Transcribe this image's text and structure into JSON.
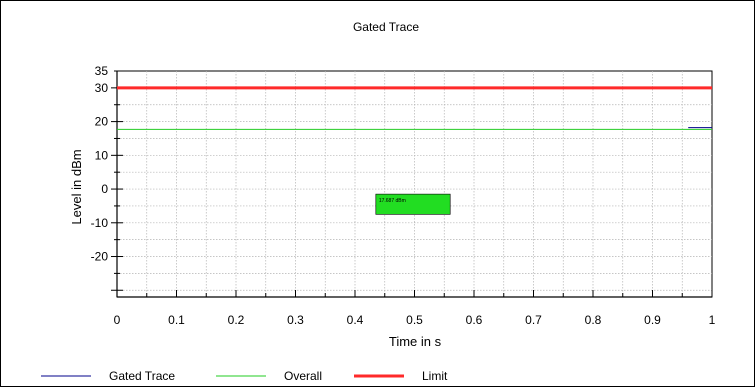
{
  "chart_data": {
    "type": "line",
    "title": "Gated Trace",
    "xlabel": "Time in s",
    "ylabel": "Level in dBm",
    "xlim": [
      0,
      1
    ],
    "ylim": [
      -32,
      35
    ],
    "x_ticks": [
      0,
      0.1,
      0.2,
      0.3,
      0.4,
      0.5,
      0.6,
      0.7,
      0.8,
      0.9,
      1
    ],
    "x_tick_labels": [
      "0",
      "0.1",
      "0.2",
      "0.3",
      "0.4",
      "0.5",
      "0.6",
      "0.7",
      "0.8",
      "0.9",
      "1"
    ],
    "y_ticks": [
      35,
      30,
      20,
      10,
      0,
      -10,
      -20
    ],
    "y_tick_labels": [
      "35",
      "30",
      "20",
      "10",
      "0",
      "-10",
      "-20"
    ],
    "grid": true,
    "legend_position": "bottom",
    "series": [
      {
        "name": "Gated Trace",
        "color": "#00008b",
        "width": 1,
        "x": [
          0.96,
          1
        ],
        "y": [
          18.2,
          18.2
        ]
      },
      {
        "name": "Overall",
        "color": "#22cc22",
        "width": 1,
        "x": [
          0,
          1
        ],
        "y": [
          17.7,
          17.7
        ]
      },
      {
        "name": "Limit",
        "color": "#ff2a2a",
        "width": 3,
        "x": [
          0,
          1
        ],
        "y": [
          30,
          30
        ]
      }
    ],
    "annotation": {
      "text": "17.687 dBm",
      "color": "#22dd22",
      "x_range": [
        0.435,
        0.56
      ],
      "y_range": [
        -7.5,
        -1.5
      ]
    }
  }
}
